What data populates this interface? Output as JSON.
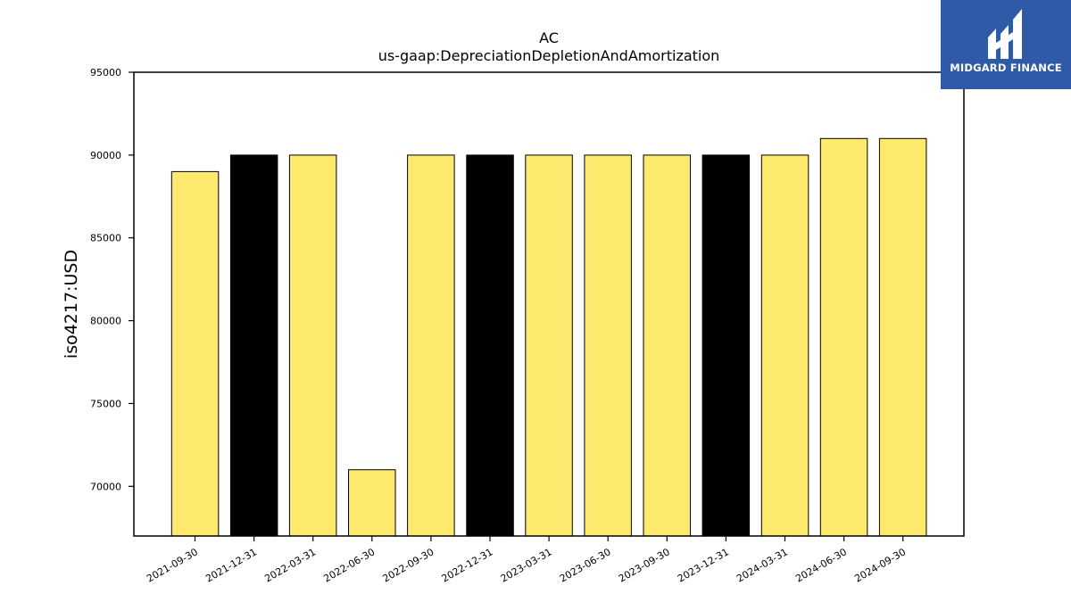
{
  "chart_data": {
    "type": "bar",
    "title": "AC",
    "subtitle": "us-gaap:DepreciationDepletionAndAmortization",
    "xlabel": "",
    "ylabel": "iso4217:USD",
    "ylim": [
      67000,
      95000
    ],
    "yticks": [
      70000,
      75000,
      80000,
      85000,
      90000,
      95000
    ],
    "categories": [
      "2021-09-30",
      "2021-12-31",
      "2022-03-31",
      "2022-06-30",
      "2022-09-30",
      "2022-12-31",
      "2023-03-31",
      "2023-06-30",
      "2023-09-30",
      "2023-12-31",
      "2024-03-31",
      "2024-06-30",
      "2024-09-30"
    ],
    "values": [
      89000,
      90000,
      90000,
      71000,
      90000,
      90000,
      90000,
      90000,
      90000,
      90000,
      90000,
      91000,
      91000
    ],
    "bar_colors": [
      "#fde96e",
      "#000000",
      "#fde96e",
      "#fde96e",
      "#fde96e",
      "#000000",
      "#fde96e",
      "#fde96e",
      "#fde96e",
      "#000000",
      "#fde96e",
      "#fde96e",
      "#fde96e"
    ],
    "grid": false,
    "legend": "none"
  },
  "logo": {
    "text": "MIDGARD FINANCE",
    "background": "#2f5aa8"
  }
}
